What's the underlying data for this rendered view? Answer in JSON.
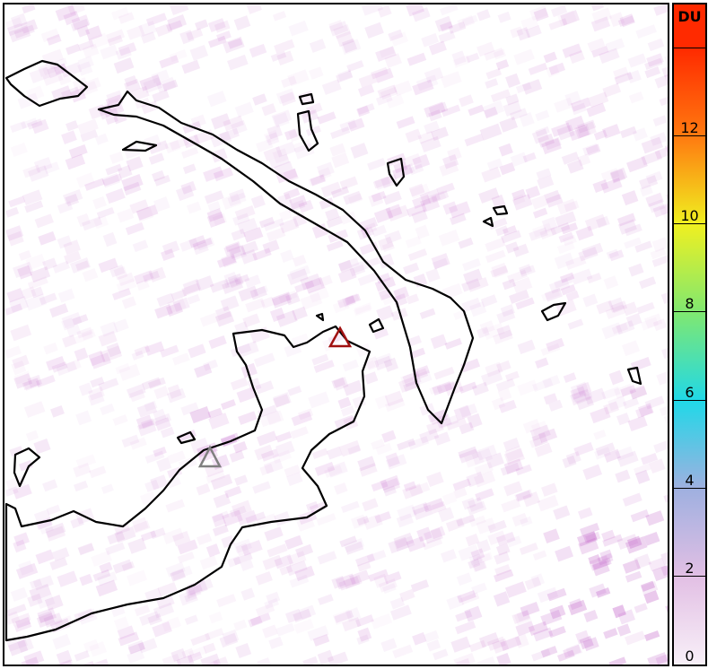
{
  "colorbar": {
    "unit": "DU",
    "ticks": [
      "0",
      "2",
      "4",
      "6",
      "8",
      "10",
      "12"
    ],
    "range": [
      0,
      15
    ],
    "colors": [
      "#f8f0f8",
      "#e2bfe4",
      "#9fb0e0",
      "#20d8e8",
      "#80e870",
      "#f0f020",
      "#ff7a10",
      "#ff2a00"
    ]
  },
  "markers": [
    {
      "name": "volcano-red",
      "color": "#a01010"
    },
    {
      "name": "volcano-gray",
      "color": "#808080"
    }
  ],
  "plume_color": "#c060c8"
}
